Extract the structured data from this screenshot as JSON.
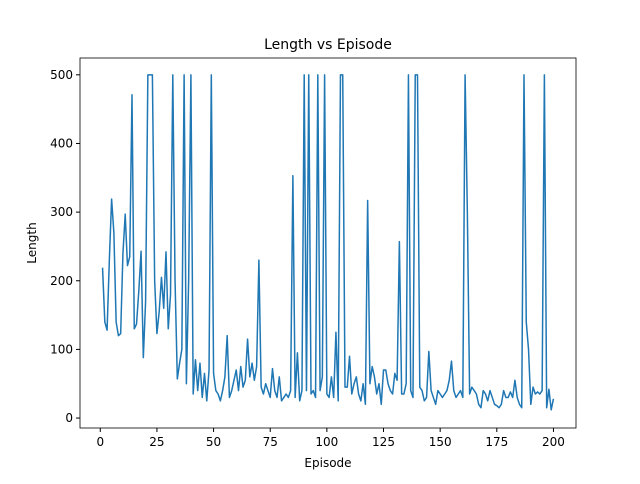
{
  "chart_data": {
    "type": "line",
    "title": "Length vs Episode",
    "x_label": "Episode",
    "y_label": "Length",
    "color": "#1f77b4",
    "x": [
      1,
      2,
      3,
      4,
      5,
      6,
      7,
      8,
      9,
      10,
      11,
      12,
      13,
      14,
      15,
      16,
      17,
      18,
      19,
      20,
      21,
      22,
      23,
      24,
      25,
      26,
      27,
      28,
      29,
      30,
      31,
      32,
      33,
      34,
      35,
      36,
      37,
      38,
      39,
      40,
      41,
      42,
      43,
      44,
      45,
      46,
      47,
      48,
      49,
      50,
      51,
      52,
      53,
      54,
      55,
      56,
      57,
      58,
      59,
      60,
      61,
      62,
      63,
      64,
      65,
      66,
      67,
      68,
      69,
      70,
      71,
      72,
      73,
      74,
      75,
      76,
      77,
      78,
      79,
      80,
      81,
      82,
      83,
      84,
      85,
      86,
      87,
      88,
      89,
      90,
      91,
      92,
      93,
      94,
      95,
      96,
      97,
      98,
      99,
      100,
      101,
      102,
      103,
      104,
      105,
      106,
      107,
      108,
      109,
      110,
      111,
      112,
      113,
      114,
      115,
      116,
      117,
      118,
      119,
      120,
      121,
      122,
      123,
      124,
      125,
      126,
      127,
      128,
      129,
      130,
      131,
      132,
      133,
      134,
      135,
      136,
      137,
      138,
      139,
      140,
      141,
      142,
      143,
      144,
      145,
      146,
      147,
      148,
      149,
      150,
      151,
      152,
      153,
      154,
      155,
      156,
      157,
      158,
      159,
      160,
      161,
      162,
      163,
      164,
      165,
      166,
      167,
      168,
      169,
      170,
      171,
      172,
      173,
      174,
      175,
      176,
      177,
      178,
      179,
      180,
      181,
      182,
      183,
      184,
      185,
      186,
      187,
      188,
      189,
      190,
      191,
      192,
      193,
      194,
      195,
      196,
      197,
      198,
      199,
      200
    ],
    "values": [
      219,
      140,
      128,
      230,
      319,
      270,
      140,
      120,
      123,
      240,
      297,
      222,
      235,
      471,
      130,
      137,
      185,
      243,
      88,
      170,
      500,
      500,
      500,
      200,
      123,
      155,
      205,
      160,
      242,
      130,
      180,
      500,
      200,
      57,
      80,
      100,
      500,
      50,
      200,
      500,
      35,
      85,
      40,
      80,
      30,
      65,
      25,
      70,
      500,
      65,
      40,
      35,
      25,
      40,
      60,
      120,
      30,
      40,
      55,
      70,
      40,
      75,
      45,
      55,
      115,
      60,
      80,
      55,
      75,
      230,
      45,
      35,
      50,
      40,
      30,
      72,
      40,
      30,
      60,
      25,
      30,
      35,
      30,
      40,
      353,
      30,
      95,
      25,
      40,
      500,
      40,
      500,
      35,
      40,
      30,
      500,
      40,
      60,
      500,
      35,
      30,
      60,
      30,
      125,
      25,
      500,
      500,
      45,
      45,
      90,
      35,
      50,
      60,
      35,
      25,
      50,
      20,
      317,
      50,
      75,
      60,
      35,
      50,
      20,
      70,
      70,
      50,
      40,
      35,
      65,
      55,
      257,
      35,
      35,
      50,
      500,
      40,
      30,
      500,
      500,
      45,
      40,
      25,
      30,
      97,
      40,
      30,
      20,
      40,
      35,
      30,
      35,
      40,
      55,
      83,
      40,
      30,
      35,
      40,
      30,
      500,
      300,
      35,
      45,
      40,
      35,
      20,
      15,
      40,
      35,
      25,
      40,
      30,
      20,
      18,
      15,
      20,
      40,
      30,
      30,
      38,
      30,
      55,
      30,
      20,
      15,
      500,
      140,
      100,
      20,
      45,
      35,
      38,
      35,
      40,
      500,
      15,
      42,
      12,
      28
    ],
    "xlim": [
      -8.95,
      209.95
    ],
    "ylim": [
      -14.5,
      524.5
    ],
    "xticks": [
      0,
      25,
      50,
      75,
      100,
      125,
      150,
      175,
      200
    ],
    "yticks": [
      0,
      100,
      200,
      300,
      400,
      500
    ]
  }
}
